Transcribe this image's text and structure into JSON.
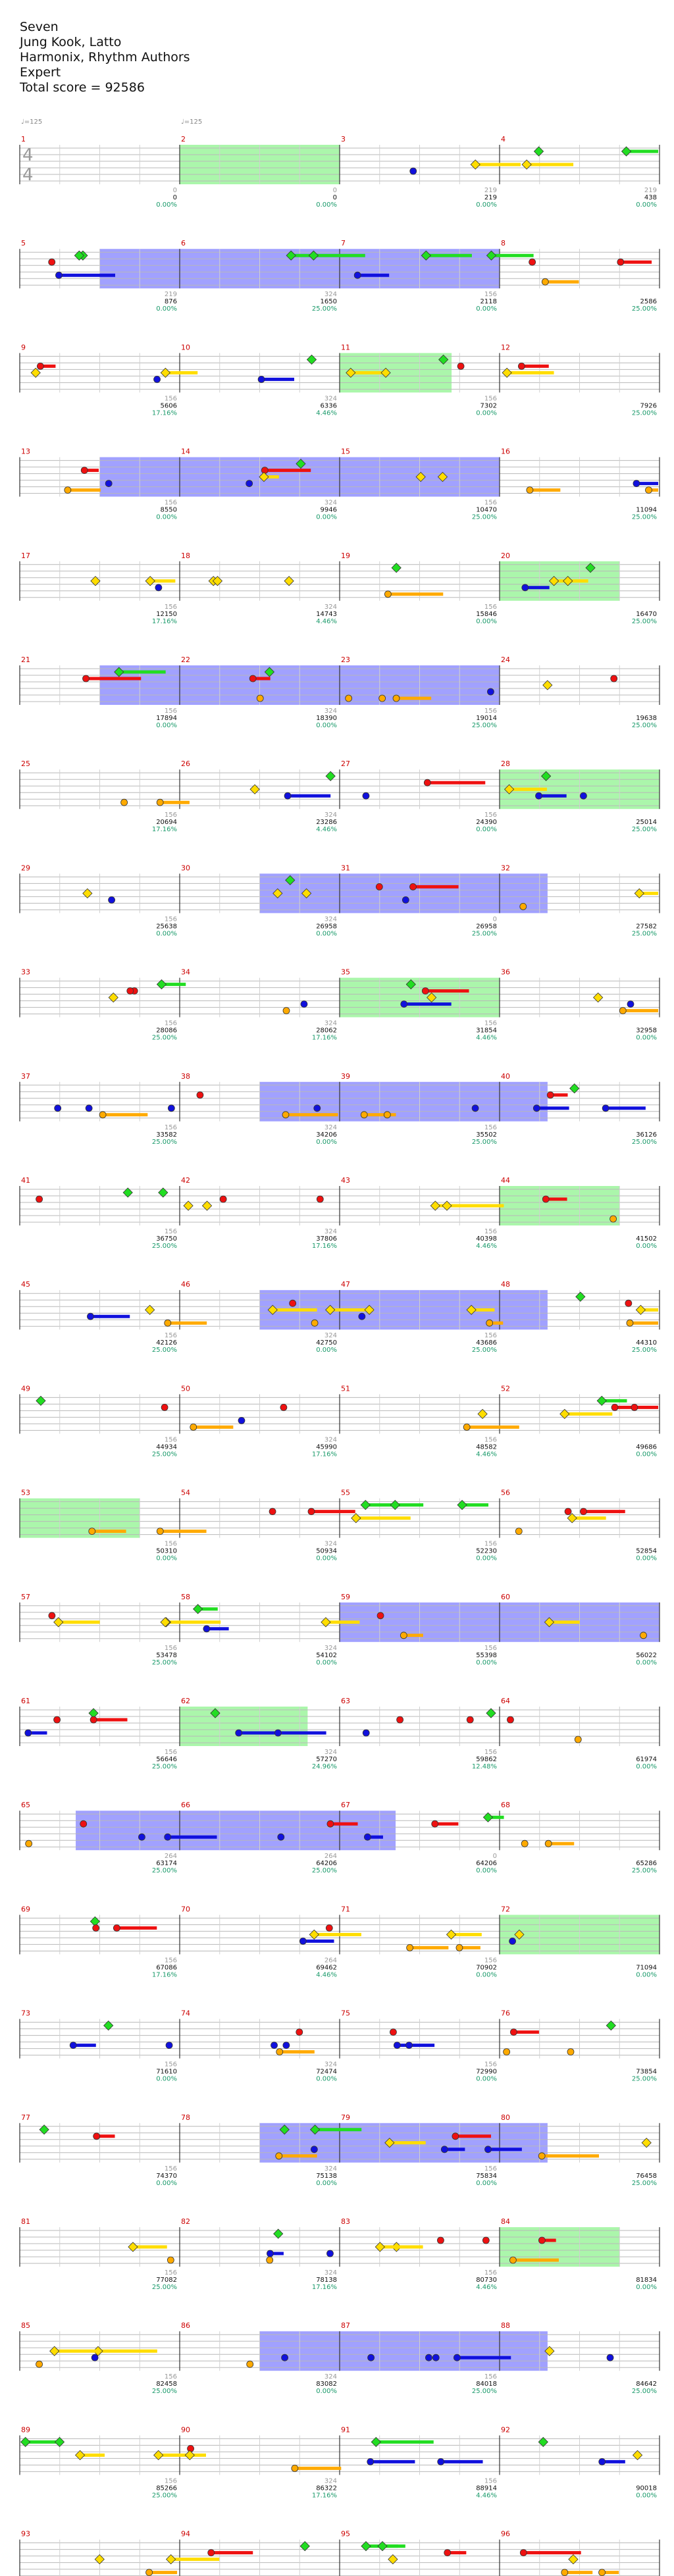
{
  "header": {
    "song": "Seven",
    "artist": "Jung Kook, Latto",
    "charter": "Harmonix, Rhythm Authors",
    "difficulty": "Expert",
    "total_score_label": "Total score = 92586"
  },
  "time_signature": {
    "top": "4",
    "bottom": "4"
  },
  "tempo_markers": [
    "♩=125",
    "♩=125"
  ],
  "colors": {
    "green": "#22dd22",
    "red": "#ee1111",
    "yellow": "#ffdd00",
    "blue": "#1111dd",
    "orange": "#ffaa00",
    "purple": "#8a008a",
    "olive": "#b38f00",
    "teal": "#227788",
    "star_power": "#66ee66",
    "overdrive": "#4444ff",
    "percent_text": "#1a9a6a"
  },
  "rows": [
    {
      "measures": [
        "1",
        "2",
        "3",
        "4"
      ],
      "cells": [
        {
          "sub": "",
          "score": "",
          "pct": ""
        },
        {
          "sub": "0",
          "score": "0",
          "pct": "0.00%"
        },
        {
          "sub": "0",
          "score": "0",
          "pct": "0.00%"
        },
        {
          "sub": "219",
          "score": "219",
          "pct": "0.00%"
        },
        {
          "sub": "219",
          "score": "438",
          "pct": "0.00%"
        }
      ]
    },
    {
      "measures": [
        "5",
        "6",
        "7",
        "8"
      ],
      "cells": [
        {
          "sub": "",
          "score": "",
          "pct": ""
        },
        {
          "sub": "219",
          "score": "876",
          "pct": "0.00%"
        },
        {
          "sub": "324",
          "score": "1650",
          "pct": "25.00%"
        },
        {
          "sub": "156",
          "score": "2118",
          "pct": "0.00%"
        },
        {
          "sub": "",
          "score": "2586",
          "pct": "25.00%"
        }
      ]
    },
    {
      "measures": [
        "9",
        "10",
        "11",
        "12"
      ],
      "cells": [
        {
          "sub": "",
          "score": "",
          "pct": ""
        },
        {
          "sub": "156",
          "score": "5606",
          "pct": "17.16%"
        },
        {
          "sub": "324",
          "score": "6336",
          "pct": "4.46%"
        },
        {
          "sub": "156",
          "score": "7302",
          "pct": "0.00%"
        },
        {
          "sub": "",
          "score": "7926",
          "pct": "25.00%"
        }
      ]
    },
    {
      "measures": [
        "13",
        "14",
        "15",
        "16"
      ],
      "cells": [
        {
          "sub": "",
          "score": "",
          "pct": ""
        },
        {
          "sub": "156",
          "score": "8550",
          "pct": "0.00%"
        },
        {
          "sub": "324",
          "score": "9946",
          "pct": "0.00%"
        },
        {
          "sub": "156",
          "score": "10470",
          "pct": "25.00%"
        },
        {
          "sub": "",
          "score": "11094",
          "pct": "25.00%"
        }
      ]
    },
    {
      "measures": [
        "17",
        "18",
        "19",
        "20"
      ],
      "cells": [
        {
          "sub": "",
          "score": "",
          "pct": ""
        },
        {
          "sub": "156",
          "score": "12150",
          "pct": "17.16%"
        },
        {
          "sub": "324",
          "score": "14743",
          "pct": "4.46%"
        },
        {
          "sub": "156",
          "score": "15846",
          "pct": "0.00%"
        },
        {
          "sub": "",
          "score": "16470",
          "pct": "25.00%"
        }
      ]
    },
    {
      "measures": [
        "21",
        "22",
        "23",
        "24"
      ],
      "cells": [
        {
          "sub": "",
          "score": "",
          "pct": ""
        },
        {
          "sub": "156",
          "score": "17894",
          "pct": "0.00%"
        },
        {
          "sub": "324",
          "score": "18390",
          "pct": "0.00%"
        },
        {
          "sub": "156",
          "score": "19014",
          "pct": "25.00%"
        },
        {
          "sub": "",
          "score": "19638",
          "pct": "25.00%"
        }
      ]
    },
    {
      "measures": [
        "25",
        "26",
        "27",
        "28"
      ],
      "cells": [
        {
          "sub": "",
          "score": "",
          "pct": ""
        },
        {
          "sub": "156",
          "score": "20694",
          "pct": "17.16%"
        },
        {
          "sub": "324",
          "score": "23286",
          "pct": "4.46%"
        },
        {
          "sub": "156",
          "score": "24390",
          "pct": "0.00%"
        },
        {
          "sub": "",
          "score": "25014",
          "pct": "25.00%"
        }
      ]
    },
    {
      "measures": [
        "29",
        "30",
        "31",
        "32"
      ],
      "cells": [
        {
          "sub": "",
          "score": "",
          "pct": ""
        },
        {
          "sub": "156",
          "score": "25638",
          "pct": "0.00%"
        },
        {
          "sub": "324",
          "score": "26958",
          "pct": "0.00%"
        },
        {
          "sub": "0",
          "score": "26958",
          "pct": "25.00%"
        },
        {
          "sub": "",
          "score": "27582",
          "pct": "25.00%"
        }
      ]
    },
    {
      "measures": [
        "33",
        "34",
        "35",
        "36"
      ],
      "cells": [
        {
          "sub": "",
          "score": "",
          "pct": ""
        },
        {
          "sub": "156",
          "score": "28086",
          "pct": "25.00%"
        },
        {
          "sub": "324",
          "score": "28062",
          "pct": "17.16%"
        },
        {
          "sub": "156",
          "score": "31854",
          "pct": "4.46%"
        },
        {
          "sub": "",
          "score": "32958",
          "pct": "0.00%"
        }
      ]
    },
    {
      "measures": [
        "37",
        "38",
        "39",
        "40"
      ],
      "cells": [
        {
          "sub": "",
          "score": "",
          "pct": ""
        },
        {
          "sub": "156",
          "score": "33582",
          "pct": "25.00%"
        },
        {
          "sub": "324",
          "score": "34206",
          "pct": "0.00%"
        },
        {
          "sub": "156",
          "score": "35502",
          "pct": "25.00%"
        },
        {
          "sub": "",
          "score": "36126",
          "pct": "25.00%"
        }
      ]
    },
    {
      "measures": [
        "41",
        "42",
        "43",
        "44"
      ],
      "cells": [
        {
          "sub": "",
          "score": "",
          "pct": ""
        },
        {
          "sub": "156",
          "score": "36750",
          "pct": "25.00%"
        },
        {
          "sub": "324",
          "score": "37806",
          "pct": "17.16%"
        },
        {
          "sub": "156",
          "score": "40398",
          "pct": "4.46%"
        },
        {
          "sub": "",
          "score": "41502",
          "pct": "0.00%"
        }
      ]
    },
    {
      "measures": [
        "45",
        "46",
        "47",
        "48"
      ],
      "cells": [
        {
          "sub": "",
          "score": "",
          "pct": ""
        },
        {
          "sub": "156",
          "score": "42126",
          "pct": "25.00%"
        },
        {
          "sub": "324",
          "score": "42750",
          "pct": "0.00%"
        },
        {
          "sub": "156",
          "score": "43686",
          "pct": "25.00%"
        },
        {
          "sub": "",
          "score": "44310",
          "pct": "25.00%"
        }
      ]
    },
    {
      "measures": [
        "49",
        "50",
        "51",
        "52"
      ],
      "cells": [
        {
          "sub": "",
          "score": "",
          "pct": ""
        },
        {
          "sub": "156",
          "score": "44934",
          "pct": "25.00%"
        },
        {
          "sub": "324",
          "score": "45990",
          "pct": "17.16%"
        },
        {
          "sub": "156",
          "score": "48582",
          "pct": "4.46%"
        },
        {
          "sub": "",
          "score": "49686",
          "pct": "0.00%"
        }
      ]
    },
    {
      "measures": [
        "53",
        "54",
        "55",
        "56"
      ],
      "cells": [
        {
          "sub": "",
          "score": "",
          "pct": ""
        },
        {
          "sub": "156",
          "score": "50310",
          "pct": "0.00%"
        },
        {
          "sub": "324",
          "score": "50934",
          "pct": "0.00%"
        },
        {
          "sub": "156",
          "score": "52230",
          "pct": "0.00%"
        },
        {
          "sub": "",
          "score": "52854",
          "pct": "0.00%"
        }
      ]
    },
    {
      "measures": [
        "57",
        "58",
        "59",
        "60"
      ],
      "cells": [
        {
          "sub": "",
          "score": "",
          "pct": ""
        },
        {
          "sub": "156",
          "score": "53478",
          "pct": "25.00%"
        },
        {
          "sub": "324",
          "score": "54102",
          "pct": "0.00%"
        },
        {
          "sub": "156",
          "score": "55398",
          "pct": "0.00%"
        },
        {
          "sub": "",
          "score": "56022",
          "pct": "0.00%"
        }
      ]
    },
    {
      "measures": [
        "61",
        "62",
        "63",
        "64"
      ],
      "cells": [
        {
          "sub": "",
          "score": "",
          "pct": ""
        },
        {
          "sub": "156",
          "score": "56646",
          "pct": "25.00%"
        },
        {
          "sub": "324",
          "score": "57270",
          "pct": "24.96%"
        },
        {
          "sub": "156",
          "score": "59862",
          "pct": "12.48%"
        },
        {
          "sub": "",
          "score": "61974",
          "pct": "0.00%"
        }
      ]
    },
    {
      "measures": [
        "65",
        "66",
        "67",
        "68"
      ],
      "cells": [
        {
          "sub": "",
          "score": "",
          "pct": ""
        },
        {
          "sub": "264",
          "score": "63174",
          "pct": "25.00%"
        },
        {
          "sub": "264",
          "score": "64206",
          "pct": "25.00%"
        },
        {
          "sub": "0",
          "score": "64206",
          "pct": "0.00%"
        },
        {
          "sub": "",
          "score": "65286",
          "pct": "25.00%"
        }
      ]
    },
    {
      "measures": [
        "69",
        "70",
        "71",
        "72"
      ],
      "cells": [
        {
          "sub": "",
          "score": "",
          "pct": ""
        },
        {
          "sub": "156",
          "score": "67086",
          "pct": "17.16%"
        },
        {
          "sub": "264",
          "score": "69462",
          "pct": "4.46%"
        },
        {
          "sub": "156",
          "score": "70902",
          "pct": "0.00%"
        },
        {
          "sub": "",
          "score": "71094",
          "pct": "0.00%"
        }
      ]
    },
    {
      "measures": [
        "73",
        "74",
        "75",
        "76"
      ],
      "cells": [
        {
          "sub": "",
          "score": "",
          "pct": ""
        },
        {
          "sub": "156",
          "score": "71610",
          "pct": "0.00%"
        },
        {
          "sub": "324",
          "score": "72474",
          "pct": "0.00%"
        },
        {
          "sub": "156",
          "score": "72990",
          "pct": "0.00%"
        },
        {
          "sub": "",
          "score": "73854",
          "pct": "25.00%"
        }
      ]
    },
    {
      "measures": [
        "77",
        "78",
        "79",
        "80"
      ],
      "cells": [
        {
          "sub": "",
          "score": "",
          "pct": ""
        },
        {
          "sub": "156",
          "score": "74370",
          "pct": "0.00%"
        },
        {
          "sub": "324",
          "score": "75138",
          "pct": "0.00%"
        },
        {
          "sub": "156",
          "score": "75834",
          "pct": "0.00%"
        },
        {
          "sub": "",
          "score": "76458",
          "pct": "25.00%"
        }
      ]
    },
    {
      "measures": [
        "81",
        "82",
        "83",
        "84"
      ],
      "cells": [
        {
          "sub": "",
          "score": "",
          "pct": ""
        },
        {
          "sub": "156",
          "score": "77082",
          "pct": "25.00%"
        },
        {
          "sub": "324",
          "score": "78138",
          "pct": "17.16%"
        },
        {
          "sub": "156",
          "score": "80730",
          "pct": "4.46%"
        },
        {
          "sub": "",
          "score": "81834",
          "pct": "0.00%"
        }
      ]
    },
    {
      "measures": [
        "85",
        "86",
        "87",
        "88"
      ],
      "cells": [
        {
          "sub": "",
          "score": "",
          "pct": ""
        },
        {
          "sub": "156",
          "score": "82458",
          "pct": "25.00%"
        },
        {
          "sub": "324",
          "score": "83082",
          "pct": "0.00%"
        },
        {
          "sub": "156",
          "score": "84018",
          "pct": "25.00%"
        },
        {
          "sub": "",
          "score": "84642",
          "pct": "25.00%"
        }
      ]
    },
    {
      "measures": [
        "89",
        "90",
        "91",
        "92"
      ],
      "cells": [
        {
          "sub": "",
          "score": "",
          "pct": ""
        },
        {
          "sub": "156",
          "score": "85266",
          "pct": "25.00%"
        },
        {
          "sub": "324",
          "score": "86322",
          "pct": "17.16%"
        },
        {
          "sub": "156",
          "score": "88914",
          "pct": "4.46%"
        },
        {
          "sub": "",
          "score": "90018",
          "pct": "0.00%"
        }
      ]
    },
    {
      "measures": [
        "93",
        "94",
        "95",
        "96"
      ],
      "cells": [
        {
          "sub": "",
          "score": "",
          "pct": ""
        },
        {
          "sub": "156",
          "score": "90642",
          "pct": "0.00%"
        },
        {
          "sub": "324",
          "score": "91266",
          "pct": "0.00%"
        },
        {
          "sub": "156",
          "score": "92586",
          "pct": "0.00%"
        },
        {
          "sub": "",
          "score": "92586",
          "pct": "0.00%"
        }
      ]
    }
  ],
  "sections": [
    {
      "row": 1,
      "type": "star_power",
      "from_measure": 1,
      "to_measure": 2
    },
    {
      "row": 2,
      "type": "overdrive",
      "from_measure": 0.5,
      "to_measure": 3
    },
    {
      "row": 3,
      "type": "star_power",
      "from_measure": 2,
      "to_measure": 2.7
    },
    {
      "row": 4,
      "type": "overdrive",
      "from_measure": 0.5,
      "to_measure": 3
    },
    {
      "row": 5,
      "type": "star_power",
      "from_measure": 3,
      "to_measure": 3.75
    },
    {
      "row": 6,
      "type": "overdrive",
      "from_measure": 0.5,
      "to_measure": 3
    },
    {
      "row": 7,
      "type": "star_power",
      "from_measure": 3,
      "to_measure": 4
    },
    {
      "row": 8,
      "type": "overdrive",
      "from_measure": 1.5,
      "to_measure": 3.3
    },
    {
      "row": 9,
      "type": "star_power",
      "from_measure": 2,
      "to_measure": 3
    },
    {
      "row": 10,
      "type": "overdrive",
      "from_measure": 1.5,
      "to_measure": 3.3
    },
    {
      "row": 11,
      "type": "star_power",
      "from_measure": 3,
      "to_measure": 3.75
    },
    {
      "row": 12,
      "type": "overdrive",
      "from_measure": 1.5,
      "to_measure": 3.3
    },
    {
      "row": 14,
      "type": "star_power",
      "from_measure": 0,
      "to_measure": 0.75
    },
    {
      "row": 15,
      "type": "overdrive",
      "from_measure": 2,
      "to_measure": 4
    },
    {
      "row": 16,
      "type": "star_power",
      "from_measure": 1,
      "to_measure": 1.8
    },
    {
      "row": 17,
      "type": "overdrive",
      "from_measure": 0.35,
      "to_measure": 2.35
    },
    {
      "row": 18,
      "type": "star_power",
      "from_measure": 3,
      "to_measure": 4
    },
    {
      "row": 20,
      "type": "overdrive",
      "from_measure": 1.5,
      "to_measure": 3.3
    },
    {
      "row": 21,
      "type": "star_power",
      "from_measure": 3,
      "to_measure": 3.75
    },
    {
      "row": 22,
      "type": "overdrive",
      "from_measure": 1.5,
      "to_measure": 3.3
    }
  ]
}
